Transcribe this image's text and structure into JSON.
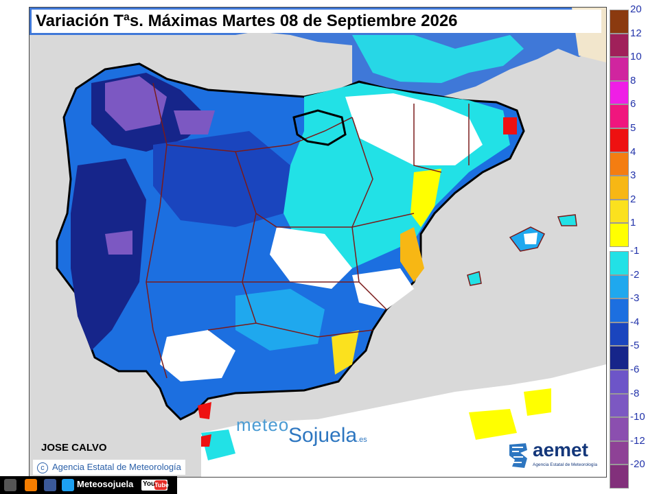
{
  "title": "Variación Tªs. Máximas Martes 08 de Septiembre 2026",
  "author": "JOSE CALVO",
  "copyright": "Agencia Estatal de Meteorología",
  "watermark": {
    "part1": "meteo",
    "part2": "Sojuela",
    "suffix": ".es"
  },
  "logo": {
    "name": "aemet",
    "subtitle": "Agencia Estatal de Meteorología"
  },
  "legend": {
    "positive": [
      {
        "label": "20",
        "color": "#8b3a0f"
      },
      {
        "label": "12",
        "color": "#a0205a"
      },
      {
        "label": "10",
        "color": "#d0259f"
      },
      {
        "label": "8",
        "color": "#ef1ee6"
      },
      {
        "label": "6",
        "color": "#f0167e"
      },
      {
        "label": "5",
        "color": "#ee1111"
      },
      {
        "label": "4",
        "color": "#f47d11"
      },
      {
        "label": "3",
        "color": "#f7b714"
      },
      {
        "label": "2",
        "color": "#fbe11e"
      },
      {
        "label": "1",
        "color": "#ffff00"
      }
    ],
    "negative": [
      {
        "label": "-1",
        "color": "#22e1e6"
      },
      {
        "label": "-2",
        "color": "#1fa8ee"
      },
      {
        "label": "-3",
        "color": "#1c6fe0"
      },
      {
        "label": "-4",
        "color": "#1a45be"
      },
      {
        "label": "-5",
        "color": "#16258a"
      },
      {
        "label": "-6",
        "color": "#6d55c8"
      },
      {
        "label": "-8",
        "color": "#7c58c2"
      },
      {
        "label": "-10",
        "color": "#8b4faf"
      },
      {
        "label": "-12",
        "color": "#8e4296"
      },
      {
        "label": "-20",
        "color": "#82307b"
      }
    ]
  },
  "social": {
    "label": "Meteosojuela",
    "youtube": "You",
    "youtube_tube": "Tube"
  },
  "colors": {
    "sea": "#d9d9d9",
    "coast": "#000000",
    "borders": "#7a1a1a"
  }
}
